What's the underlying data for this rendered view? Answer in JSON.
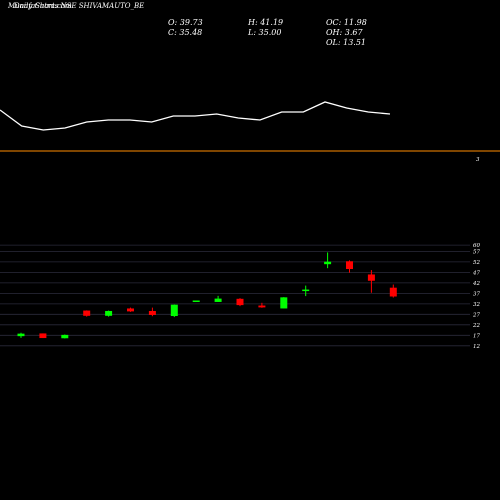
{
  "header": {
    "title": "MunafaSutra.com",
    "subtitle": "Daily Charts NSE SHIVAMAUTO_BE"
  },
  "stats": {
    "open": "O: 39.73",
    "close": "C: 35.48",
    "high": "H: 41.19",
    "low": "L: 35.00",
    "oc": "OC: 11.98",
    "oh": "OH: 3.67",
    "ol": "OL: 13.51"
  },
  "volume_panel": {
    "axis_label": "3"
  },
  "colors": {
    "background": "#000000",
    "bull": "#00ff00",
    "bear": "#ff0000",
    "line": "#ffffff",
    "divider": "#ff8c00",
    "grid": "#2a2a3a"
  },
  "chart_data": [
    {
      "type": "line",
      "title": "",
      "values": [
        20,
        12,
        10,
        11,
        14,
        15,
        15,
        14,
        17,
        17,
        18,
        16,
        15,
        19,
        19,
        24,
        21,
        19,
        18
      ],
      "ylim": [
        0,
        40
      ]
    },
    {
      "type": "candlestick",
      "title": "",
      "yticks": [
        12,
        17,
        22,
        27,
        32,
        37,
        42,
        47,
        52,
        57,
        60
      ],
      "ylim": [
        10,
        61
      ],
      "candles": [
        {
          "o": 16.6,
          "h": 18.2,
          "l": 15.8,
          "c": 17.8
        },
        {
          "o": 17.9,
          "h": 17.9,
          "l": 15.7,
          "c": 15.7
        },
        {
          "o": 15.6,
          "h": 17.4,
          "l": 15.5,
          "c": 17.2
        },
        {
          "o": 28.8,
          "h": 28.9,
          "l": 25.9,
          "c": 26.3
        },
        {
          "o": 26.3,
          "h": 28.8,
          "l": 25.9,
          "c": 28.6
        },
        {
          "o": 29.8,
          "h": 30.2,
          "l": 28.2,
          "c": 28.4
        },
        {
          "o": 28.6,
          "h": 30.2,
          "l": 26.1,
          "c": 26.7
        },
        {
          "o": 26.2,
          "h": 31.7,
          "l": 25.7,
          "c": 31.6
        },
        {
          "o": 33.1,
          "h": 33.6,
          "l": 32.9,
          "c": 33.6
        },
        {
          "o": 32.9,
          "h": 35.8,
          "l": 32.9,
          "c": 34.5
        },
        {
          "o": 34.4,
          "h": 34.7,
          "l": 30.9,
          "c": 31.4
        },
        {
          "o": 31.2,
          "h": 32.5,
          "l": 30.1,
          "c": 30.3
        },
        {
          "o": 29.8,
          "h": 35.2,
          "l": 29.8,
          "c": 35.1
        },
        {
          "o": 38.1,
          "h": 40.7,
          "l": 35.7,
          "c": 38.8
        },
        {
          "o": 50.9,
          "h": 56.5,
          "l": 49.0,
          "c": 52.1
        },
        {
          "o": 52.3,
          "h": 52.7,
          "l": 46.8,
          "c": 48.6
        },
        {
          "o": 46.0,
          "h": 48.1,
          "l": 37.3,
          "c": 43.0
        },
        {
          "o": 39.7,
          "h": 41.2,
          "l": 35.0,
          "c": 35.5
        }
      ]
    }
  ]
}
